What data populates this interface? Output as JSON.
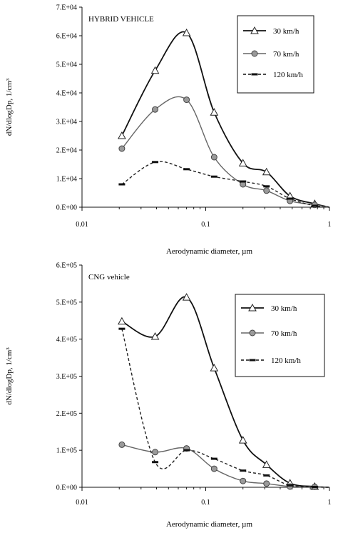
{
  "chart_data": [
    {
      "type": "line",
      "title": "HYBRID VEHICLE",
      "xlabel": "Aerodynamic diameter, µm",
      "ylabel": "dN/dlogDp, 1/cm³",
      "xscale": "log",
      "xlim": [
        0.01,
        1
      ],
      "ylim": [
        0,
        70000
      ],
      "xticks": [
        0.01,
        0.1,
        1
      ],
      "xtick_labels": [
        "0.01",
        "0.1",
        "1"
      ],
      "yticks": [
        0,
        10000,
        20000,
        30000,
        40000,
        50000,
        60000,
        70000
      ],
      "ytick_labels": [
        "0.E+00",
        "1.E+04",
        "2.E+04",
        "3.E+04",
        "4.E+04",
        "5.E+04",
        "6.E+04",
        "7.E+04"
      ],
      "legend_position": "top-right",
      "grid": false,
      "series": [
        {
          "name": "30 km/h",
          "marker": "triangle",
          "style": "solid",
          "x": [
            0.021,
            0.039,
            0.07,
            0.117,
            0.2,
            0.31,
            0.48,
            0.76
          ],
          "y": [
            25000,
            47800,
            61000,
            33200,
            15400,
            12300,
            3900,
            1200
          ]
        },
        {
          "name": "70 km/h",
          "marker": "circle",
          "style": "solid",
          "x": [
            0.021,
            0.039,
            0.07,
            0.117,
            0.2,
            0.31,
            0.48,
            0.76
          ],
          "y": [
            20500,
            34200,
            37600,
            17500,
            8000,
            5800,
            2200,
            800
          ]
        },
        {
          "name": "120 km/h",
          "marker": "dash",
          "style": "dashed",
          "x": [
            0.021,
            0.039,
            0.07,
            0.117,
            0.2,
            0.31,
            0.48,
            0.76
          ],
          "y": [
            8000,
            15800,
            13300,
            10700,
            9000,
            7300,
            3000,
            500
          ]
        }
      ]
    },
    {
      "type": "line",
      "title": "CNG vehicle",
      "xlabel": "Aerodynamic diameter, µm",
      "ylabel": "dN/dlogDp, 1/cm³",
      "xscale": "log",
      "xlim": [
        0.01,
        1
      ],
      "ylim": [
        0,
        600000
      ],
      "xticks": [
        0.01,
        0.1,
        1
      ],
      "xtick_labels": [
        "0.01",
        "0.1",
        "1"
      ],
      "yticks": [
        0,
        100000,
        200000,
        300000,
        400000,
        500000,
        600000
      ],
      "ytick_labels": [
        "0.E+00",
        "1.E+05",
        "2.E+05",
        "3.E+05",
        "4.E+05",
        "5.E+05",
        "6.E+05"
      ],
      "legend_position": "top-right",
      "grid": false,
      "series": [
        {
          "name": "30 km/h",
          "marker": "triangle",
          "style": "solid",
          "x": [
            0.021,
            0.039,
            0.07,
            0.117,
            0.2,
            0.31,
            0.48,
            0.76
          ],
          "y": [
            448000,
            407000,
            513000,
            322000,
            127000,
            61000,
            11000,
            2000
          ]
        },
        {
          "name": "70 km/h",
          "marker": "circle",
          "style": "solid",
          "x": [
            0.021,
            0.039,
            0.07,
            0.117,
            0.2,
            0.31,
            0.48,
            0.76
          ],
          "y": [
            115000,
            95000,
            105000,
            50000,
            17000,
            10000,
            2000,
            1000
          ]
        },
        {
          "name": "120 km/h",
          "marker": "dash",
          "style": "dashed",
          "x": [
            0.021,
            0.039,
            0.07,
            0.117,
            0.2,
            0.31,
            0.48,
            0.76
          ],
          "y": [
            428000,
            68000,
            100000,
            77000,
            45000,
            32000,
            5000,
            1000
          ]
        }
      ]
    }
  ]
}
